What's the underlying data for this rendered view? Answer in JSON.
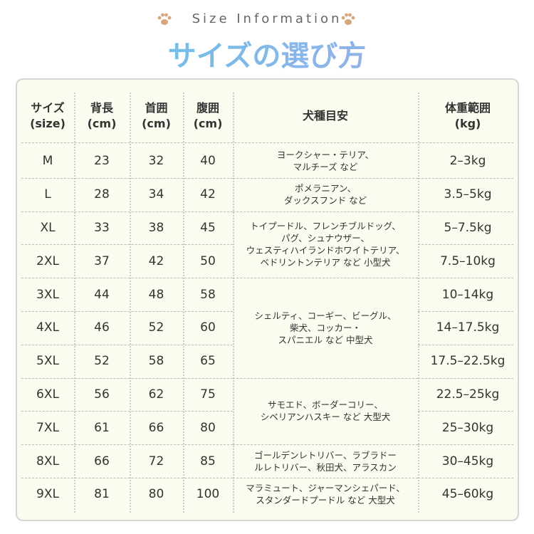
{
  "header": {
    "subtitle": "Size Information",
    "title": "サイズの選び方"
  },
  "table": {
    "columns": [
      [
        "サイズ",
        "(size)"
      ],
      [
        "背長",
        "(cm)"
      ],
      [
        "首囲",
        "(cm)"
      ],
      [
        "腹囲",
        "(cm)"
      ],
      [
        "犬種目安"
      ],
      [
        "体重範囲",
        "(kg)"
      ]
    ],
    "groups": [
      {
        "breed": [
          "ヨークシャー・テリア、",
          "マルチーズ など"
        ],
        "rows": [
          [
            "M",
            23,
            32,
            40,
            "2–3kg"
          ]
        ]
      },
      {
        "breed": [
          "ポメラニアン、",
          "ダックスフンド など"
        ],
        "rows": [
          [
            "L",
            28,
            34,
            42,
            "3.5–5kg"
          ]
        ]
      },
      {
        "breed": [
          "トイプードル、フレンチブルドッグ、",
          "パグ、シュナウザー、",
          "ウェスティハイランドホワイトテリア、",
          "ベドリントンテリア など 小型犬"
        ],
        "rows": [
          [
            "XL",
            33,
            38,
            45,
            "5–7.5kg"
          ],
          [
            "2XL",
            37,
            42,
            50,
            "7.5–10kg"
          ]
        ]
      },
      {
        "breed": [
          "シェルティ、コーギー、ビーグル、",
          "柴犬、コッカー・",
          "スパニエル など 中型犬"
        ],
        "rows": [
          [
            "3XL",
            44,
            48,
            58,
            "10–14kg"
          ],
          [
            "4XL",
            46,
            52,
            60,
            "14–17.5kg"
          ],
          [
            "5XL",
            52,
            58,
            65,
            "17.5–22.5kg"
          ]
        ]
      },
      {
        "breed": [
          "サモエド、ボーダーコリー、",
          "シベリアンハスキー など 大型犬"
        ],
        "rows": [
          [
            "6XL",
            56,
            62,
            75,
            "22.5–25kg"
          ],
          [
            "7XL",
            61,
            66,
            80,
            "25–30kg"
          ]
        ]
      },
      {
        "breed": [
          "ゴールデンレトリバー、ラブラドー",
          "ルレトリバー、秋田犬、アラスカン"
        ],
        "rows": [
          [
            "8XL",
            66,
            72,
            85,
            "30–45kg"
          ]
        ]
      },
      {
        "breed": [
          "マラミュート、ジャーマンシェパード、",
          "スタンダードプードル など 大型犬"
        ],
        "rows": [
          [
            "9XL",
            81,
            80,
            100,
            "45–60kg"
          ]
        ]
      }
    ]
  }
}
